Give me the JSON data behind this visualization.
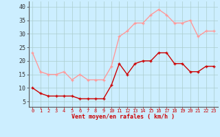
{
  "x": [
    0,
    1,
    2,
    3,
    4,
    5,
    6,
    7,
    8,
    9,
    10,
    11,
    12,
    13,
    14,
    15,
    16,
    17,
    18,
    19,
    20,
    21,
    22,
    23
  ],
  "wind_avg": [
    10,
    8,
    7,
    7,
    7,
    7,
    6,
    6,
    6,
    6,
    11,
    19,
    15,
    19,
    20,
    20,
    23,
    23,
    19,
    19,
    16,
    16,
    18,
    18
  ],
  "wind_gust": [
    23,
    16,
    15,
    15,
    16,
    13,
    15,
    13,
    13,
    13,
    18,
    29,
    31,
    34,
    34,
    37,
    39,
    37,
    34,
    34,
    35,
    29,
    31,
    31
  ],
  "avg_color": "#cc0000",
  "gust_color": "#ff9999",
  "bg_color": "#cceeff",
  "grid_color": "#aacccc",
  "xlabel": "Vent moyen/en rafales ( km/h )",
  "xlabel_color": "#cc0000",
  "yticks": [
    5,
    10,
    15,
    20,
    25,
    30,
    35,
    40
  ],
  "ylim": [
    3,
    42
  ],
  "xlim": [
    -0.5,
    23.5
  ],
  "markersize": 2.5,
  "linewidth": 1.0
}
